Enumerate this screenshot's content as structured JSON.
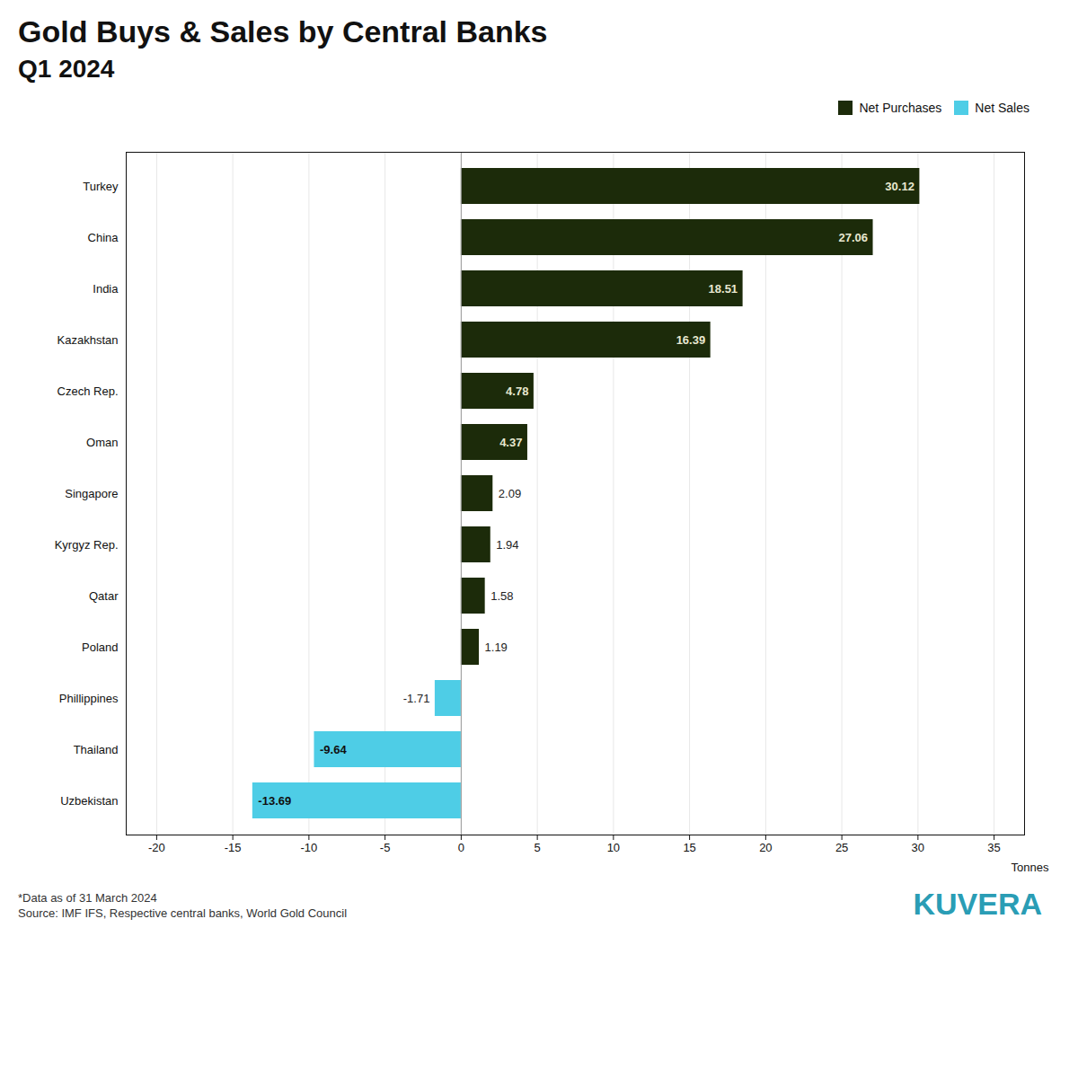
{
  "chart_data": {
    "type": "bar",
    "orientation": "horizontal",
    "title": "Gold Buys & Sales by Central Banks",
    "subtitle": "Q1 2024",
    "categories": [
      "Turkey",
      "China",
      "India",
      "Kazakhstan",
      "Czech Rep.",
      "Oman",
      "Singapore",
      "Kyrgyz Rep.",
      "Qatar",
      "Poland",
      "Phillippines",
      "Thailand",
      "Uzbekistan"
    ],
    "series": [
      {
        "name": "Net Purchases",
        "color": "#1c2b0a",
        "values": [
          30.12,
          27.06,
          18.51,
          16.39,
          4.78,
          4.37,
          2.09,
          1.94,
          1.58,
          1.19,
          null,
          null,
          null
        ]
      },
      {
        "name": "Net Sales",
        "color": "#4ecde6",
        "values": [
          null,
          null,
          null,
          null,
          null,
          null,
          null,
          null,
          null,
          null,
          -1.71,
          -9.64,
          -13.69
        ]
      }
    ],
    "xlabel": "Tonnes",
    "xlim": [
      -22,
      37
    ],
    "xticks": [
      -20,
      -15,
      -10,
      -5,
      0,
      5,
      10,
      15,
      20,
      25,
      30,
      35
    ],
    "grid": true,
    "legend": "upper right",
    "data_labels": true,
    "annotations": [
      "*Data as of 31 March 2024",
      "Source: IMF IFS, Respective central banks, World Gold Council",
      "KUVERA"
    ]
  }
}
